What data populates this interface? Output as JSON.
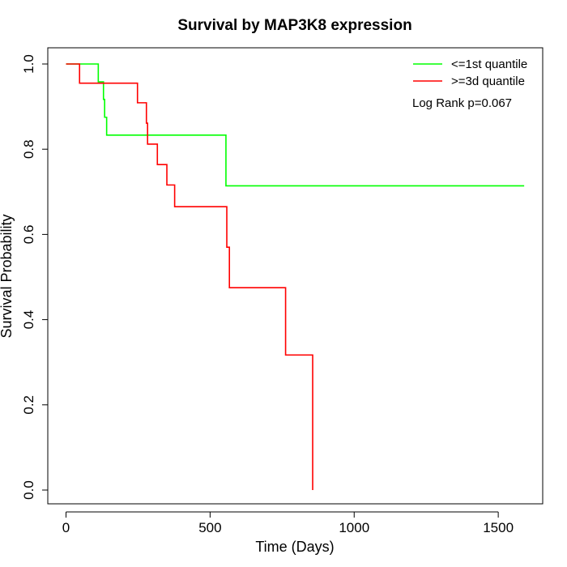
{
  "chart_data": {
    "type": "line",
    "title": "Survival by MAP3K8 expression",
    "xlabel": "Time (Days)",
    "ylabel": "Survival Probability",
    "xlim": [
      0,
      1600
    ],
    "ylim": [
      0,
      1
    ],
    "x_ticks": [
      0,
      500,
      1000,
      1500
    ],
    "y_ticks": [
      0.0,
      0.2,
      0.4,
      0.6,
      0.8,
      1.0
    ],
    "x_tick_labels": [
      "0",
      "500",
      "1000",
      "1500"
    ],
    "y_tick_labels": [
      "0.0",
      "0.2",
      "0.4",
      "0.6",
      "0.8",
      "1.0"
    ],
    "grid": false,
    "legend_position": "top-right",
    "annotation": "Log Rank p=0.067",
    "series": [
      {
        "name": "<=1st quantile",
        "color": "#00ff00",
        "step_points": [
          [
            0,
            1.0
          ],
          [
            112,
            1.0
          ],
          [
            112,
            0.958
          ],
          [
            130,
            0.958
          ],
          [
            130,
            0.917
          ],
          [
            134,
            0.917
          ],
          [
            134,
            0.875
          ],
          [
            141,
            0.875
          ],
          [
            141,
            0.833
          ],
          [
            555,
            0.833
          ],
          [
            555,
            0.714
          ],
          [
            1590,
            0.714
          ]
        ]
      },
      {
        "name": ">=3d quantile",
        "color": "#ff0000",
        "step_points": [
          [
            0,
            1.0
          ],
          [
            47,
            1.0
          ],
          [
            47,
            0.955
          ],
          [
            248,
            0.955
          ],
          [
            248,
            0.909
          ],
          [
            279,
            0.909
          ],
          [
            279,
            0.861
          ],
          [
            283,
            0.861
          ],
          [
            283,
            0.812
          ],
          [
            317,
            0.812
          ],
          [
            317,
            0.764
          ],
          [
            350,
            0.764
          ],
          [
            350,
            0.716
          ],
          [
            377,
            0.716
          ],
          [
            377,
            0.665
          ],
          [
            558,
            0.665
          ],
          [
            558,
            0.57
          ],
          [
            567,
            0.57
          ],
          [
            567,
            0.475
          ],
          [
            762,
            0.475
          ],
          [
            762,
            0.317
          ],
          [
            856,
            0.317
          ],
          [
            856,
            0.0
          ]
        ]
      }
    ]
  }
}
